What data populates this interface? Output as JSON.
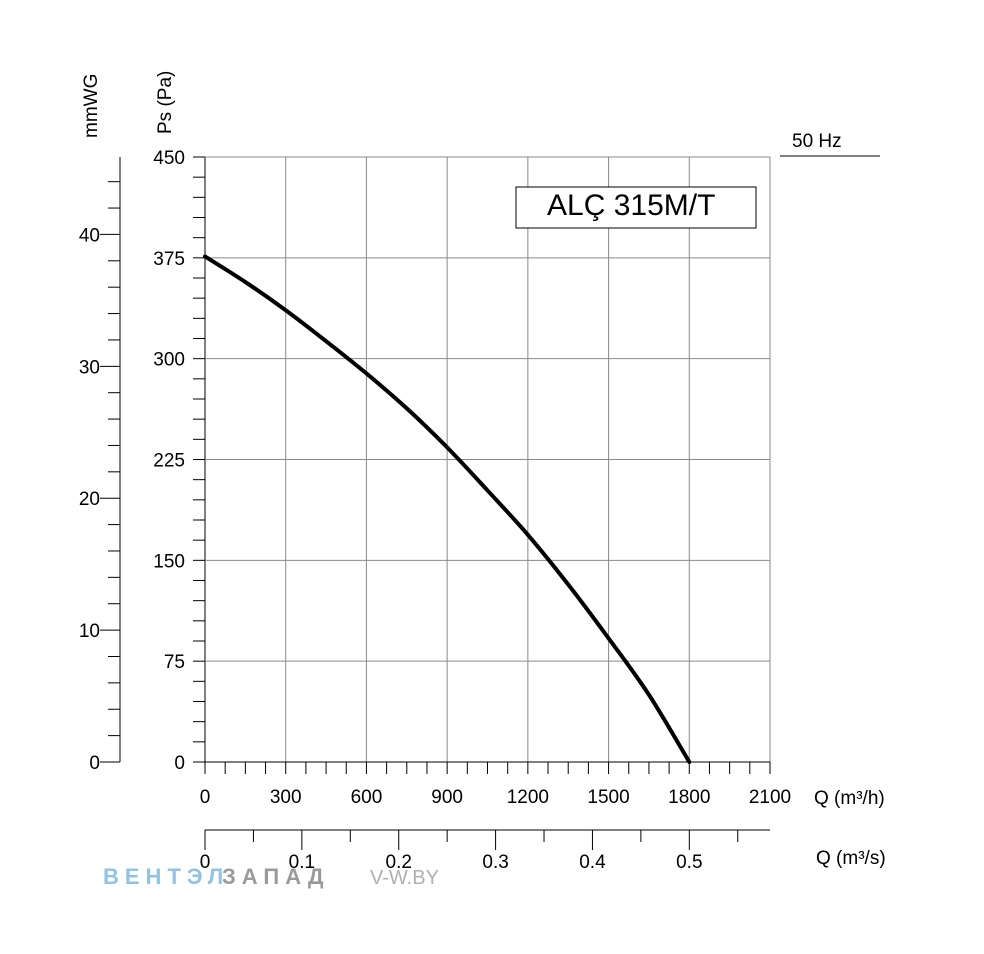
{
  "chart_data": {
    "type": "line",
    "title": "ALÇ 315M/T",
    "frequency": "50 Hz",
    "xlabel": "Q (m³/h)",
    "xlabel_secondary": "Q (m³/s)",
    "ylabel": "Ps (Pa)",
    "ylabel_secondary": "mmWG",
    "xlim": [
      0,
      2100
    ],
    "ylim": [
      0,
      450
    ],
    "x_secondary_lim": [
      0,
      0.5833
    ],
    "y_secondary_lim": [
      0,
      45.87
    ],
    "x_ticks": [
      "0",
      "300",
      "600",
      "900",
      "1200",
      "1500",
      "1800",
      "2100"
    ],
    "x_tick_values": [
      0,
      300,
      600,
      900,
      1200,
      1500,
      1800,
      2100
    ],
    "y_ticks": [
      "0",
      "75",
      "150",
      "225",
      "300",
      "375",
      "450"
    ],
    "y_tick_values": [
      0,
      75,
      150,
      225,
      300,
      375,
      450
    ],
    "x_secondary_ticks": [
      "0",
      "0.1",
      "0.2",
      "0.3",
      "0.4",
      "0.5"
    ],
    "x_secondary_tick_values": [
      0,
      0.1,
      0.2,
      0.3,
      0.4,
      0.5
    ],
    "y_secondary_ticks": [
      "0",
      "10",
      "20",
      "30",
      "40"
    ],
    "y_secondary_tick_values": [
      0,
      10,
      20,
      30,
      40
    ],
    "grid": true,
    "series": [
      {
        "x": [
          0,
          150,
          300,
          450,
          600,
          750,
          900,
          1050,
          1200,
          1350,
          1500,
          1650,
          1800
        ],
        "y": [
          376,
          357,
          336,
          313,
          289,
          263,
          234,
          202,
          169,
          132,
          92,
          50,
          0
        ]
      }
    ]
  },
  "watermark": {
    "brand_part1": "ВЕНТЭЛ",
    "brand_part2": "ЗАПАД",
    "url": "V-W.BY"
  },
  "colors": {
    "curve": "#000000",
    "grid": "#8a8a8a",
    "watermark_blue": "#8fc3e6",
    "watermark_grey": "#9a9a9a"
  }
}
